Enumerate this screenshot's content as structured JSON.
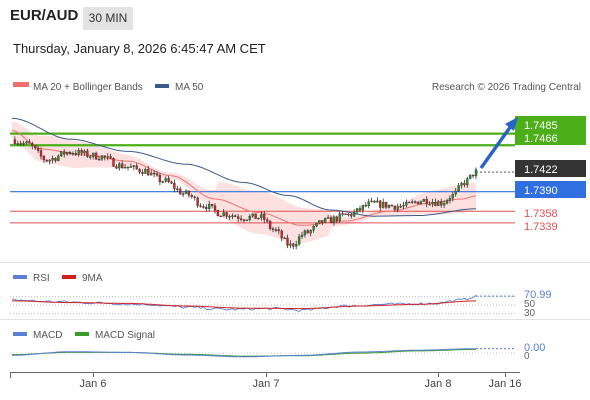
{
  "header": {
    "pair": "EUR/AUD",
    "timeframe": "30 MIN",
    "datetime": "Thursday, January 8, 2026 6:45:47 AM CET"
  },
  "legend": {
    "ma20_label": "MA 20 + Bollinger Bands",
    "ma50_label": "MA 50",
    "credit": "Research © 2026 Trading Central",
    "rsi_label": "RSI",
    "rsi_ma_label": "9MA",
    "macd_label": "MACD",
    "macd_signal_label": "MACD Signal"
  },
  "colors": {
    "candle_up": "#2e8b2e",
    "candle_down": "#c62828",
    "ma20": "#f07070",
    "ma50": "#3a5a8c",
    "bands_fill": "#fde0e0",
    "resistance": "#4caf1a",
    "pivot": "#2f6fe0",
    "support": "#e05050",
    "arrow": "#2a63c8",
    "rsi": "#5b7fd6",
    "rsi_ma": "#d22020",
    "macd": "#5b7fd6",
    "macd_signal": "#3a9a2a"
  },
  "chart_data": [
    {
      "type": "candlestick",
      "title": "EUR/AUD",
      "timeframe": "30 MIN",
      "ylim": [
        1.7275,
        1.754
      ],
      "x_ticks": [
        "Jan 6",
        "Jan 7",
        "Jan 8",
        "Jan 16"
      ],
      "last_price": 1.7422,
      "levels": {
        "resistance": [
          1.7485,
          1.7466
        ],
        "pivot": 1.739,
        "support": [
          1.7358,
          1.7339
        ]
      },
      "series_keypoints": [
        {
          "name": "price",
          "values": [
            [
              0,
              1.7475
            ],
            [
              5,
              1.7468
            ],
            [
              12,
              1.7442
            ],
            [
              20,
              1.7455
            ],
            [
              30,
              1.7448
            ],
            [
              38,
              1.7432
            ],
            [
              45,
              1.7425
            ],
            [
              52,
              1.7408
            ],
            [
              60,
              1.7386
            ],
            [
              66,
              1.7368
            ],
            [
              72,
              1.7355
            ],
            [
              80,
              1.7348
            ],
            [
              86,
              1.7348
            ],
            [
              90,
              1.7328
            ],
            [
              96,
              1.7302
            ],
            [
              101,
              1.7322
            ],
            [
              108,
              1.7342
            ],
            [
              116,
              1.7352
            ],
            [
              124,
              1.737
            ],
            [
              134,
              1.7366
            ],
            [
              142,
              1.7376
            ],
            [
              148,
              1.7372
            ],
            [
              152,
              1.7384
            ],
            [
              156,
              1.7405
            ],
            [
              160,
              1.7422
            ]
          ]
        },
        {
          "name": "MA 20",
          "values": [
            [
              0,
              1.749
            ],
            [
              10,
              1.746
            ],
            [
              25,
              1.745
            ],
            [
              40,
              1.744
            ],
            [
              55,
              1.7416
            ],
            [
              70,
              1.7378
            ],
            [
              85,
              1.7356
            ],
            [
              100,
              1.7335
            ],
            [
              115,
              1.7342
            ],
            [
              130,
              1.7358
            ],
            [
              145,
              1.7372
            ],
            [
              155,
              1.7378
            ],
            [
              160,
              1.7383
            ]
          ]
        },
        {
          "name": "MA 50",
          "values": [
            [
              0,
              1.751
            ],
            [
              20,
              1.7476
            ],
            [
              40,
              1.7456
            ],
            [
              60,
              1.7435
            ],
            [
              80,
              1.7405
            ],
            [
              95,
              1.7384
            ],
            [
              110,
              1.736
            ],
            [
              125,
              1.735
            ],
            [
              140,
              1.7351
            ],
            [
              160,
              1.7362
            ]
          ]
        }
      ],
      "candles": {
        "count": 160,
        "x_last": 160
      }
    },
    {
      "type": "line",
      "name": "RSI",
      "ylim": [
        20,
        90
      ],
      "y_ticks": [
        30,
        50,
        70.99
      ],
      "last_value": 70.99,
      "series_keypoints": [
        {
          "name": "RSI",
          "values": [
            [
              0,
              62
            ],
            [
              15,
              58
            ],
            [
              30,
              55
            ],
            [
              45,
              52
            ],
            [
              60,
              45
            ],
            [
              75,
              40
            ],
            [
              90,
              42
            ],
            [
              100,
              38
            ],
            [
              115,
              48
            ],
            [
              130,
              52
            ],
            [
              145,
              54
            ],
            [
              155,
              62
            ],
            [
              160,
              70.99
            ]
          ]
        },
        {
          "name": "9MA",
          "values": [
            [
              0,
              60
            ],
            [
              20,
              56
            ],
            [
              40,
              54
            ],
            [
              60,
              48
            ],
            [
              80,
              43
            ],
            [
              100,
              42
            ],
            [
              120,
              48
            ],
            [
              140,
              52
            ],
            [
              160,
              60
            ]
          ]
        }
      ]
    },
    {
      "type": "line",
      "name": "MACD",
      "ylim": [
        -0.004,
        0.003
      ],
      "y_ticks": [
        0,
        0.0
      ],
      "last_value": "0.00",
      "series_keypoints": [
        {
          "name": "MACD",
          "values": [
            [
              0,
              -0.0006
            ],
            [
              20,
              0.0004
            ],
            [
              40,
              0.0002
            ],
            [
              60,
              -0.0005
            ],
            [
              80,
              -0.001
            ],
            [
              100,
              -0.0006
            ],
            [
              120,
              0.0003
            ],
            [
              140,
              0.0008
            ],
            [
              160,
              0.0012
            ]
          ]
        },
        {
          "name": "MACD Signal",
          "values": [
            [
              0,
              -0.0004
            ],
            [
              20,
              0.0002
            ],
            [
              40,
              0.0002
            ],
            [
              60,
              -0.0003
            ],
            [
              80,
              -0.0008
            ],
            [
              100,
              -0.0007
            ],
            [
              120,
              0.0
            ],
            [
              140,
              0.0006
            ],
            [
              160,
              0.001
            ]
          ]
        }
      ]
    }
  ],
  "labels": {
    "r1": "1.7485",
    "r2": "1.7466",
    "last": "1.7422",
    "pivot": "1.7390",
    "s1": "1.7358",
    "s2": "1.7339",
    "rsi_value": "70.99",
    "rsi_50": "50",
    "rsi_30": "30",
    "macd_value": "0.00",
    "macd_0": "0",
    "x_jan6": "Jan 6",
    "x_jan7": "Jan 7",
    "x_jan8": "Jan 8",
    "x_jan16": "Jan 16"
  }
}
